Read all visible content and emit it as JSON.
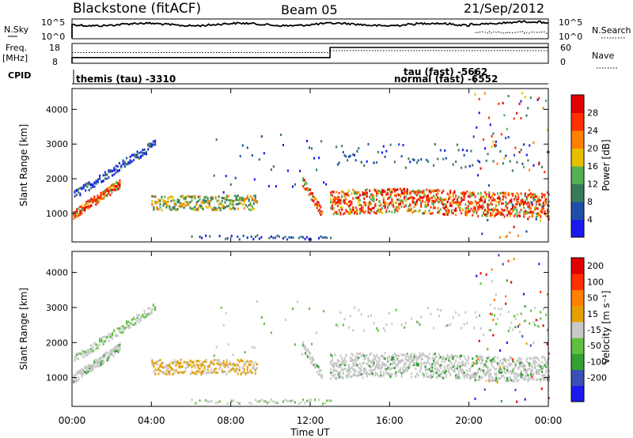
{
  "header": {
    "station": "Blackstone (fitACF)",
    "beam": "Beam 05",
    "date": "21/Sep/2012"
  },
  "top_panels": {
    "nsky_label": "N.Sky",
    "nsky_ticks": [
      "10^5",
      "10^0"
    ],
    "nsearch_label": "N.Search",
    "nsearch_ticks": [
      "10^5",
      "10^0"
    ],
    "freq_label_1": "Freq.",
    "freq_label_2": "[MHz]",
    "freq_ticks": [
      "18",
      "8"
    ],
    "nave_label": "Nave",
    "nave_ticks": [
      "60",
      "0"
    ],
    "cpid_label": "CPID",
    "cpid_entries": [
      {
        "text": "themis (tau)  -3310"
      },
      {
        "text": "tau (fast)  -5662"
      },
      {
        "text": "normal (fast)  -6552"
      }
    ],
    "freq_step": {
      "before_mhz": 10,
      "after_mhz": 18,
      "change_time_h": 13.0
    },
    "nave_step": {
      "before": 55,
      "after": 60,
      "change_time_h": 13.0
    }
  },
  "x_axis": {
    "label": "Time UT",
    "ticks": [
      "00:00",
      "04:00",
      "08:00",
      "12:00",
      "16:00",
      "20:00",
      "00:00"
    ]
  },
  "colors": {
    "power_scale": [
      "#1a1aee",
      "#1e4fa8",
      "#3a7a5a",
      "#55b055",
      "#e6c000",
      "#ff8000",
      "#ff3000",
      "#e00000"
    ],
    "velocity_scale": [
      "#1a1aee",
      "#3a4fb8",
      "#33a033",
      "#60c040",
      "#c8c8c8",
      "#e6a000",
      "#ff8000",
      "#ff3000",
      "#e00000"
    ]
  },
  "chart_data": [
    {
      "type": "heatmap",
      "title": "",
      "xlabel": "Time UT",
      "ylabel": "Slant Range [km]",
      "xlim": [
        0,
        24
      ],
      "ylim": [
        180,
        4600
      ],
      "yticks": [
        1000,
        2000,
        3000,
        4000
      ],
      "colorbar": {
        "label": "Power [dB]",
        "ticks": [
          "4",
          "8",
          "12",
          "16",
          "20",
          "24",
          "28"
        ]
      },
      "features": [
        {
          "name": "near range arc",
          "t_start": 0.0,
          "t_end": 2.3,
          "range_start": 900,
          "range_end": 1800
        },
        {
          "name": "midday patch",
          "t_start": 4.0,
          "t_end": 9.3,
          "range": 1300
        },
        {
          "name": "evening band",
          "t_start": 13.0,
          "t_end": 24.0,
          "range": 1300
        }
      ]
    },
    {
      "type": "heatmap",
      "title": "",
      "xlabel": "Time UT",
      "ylabel": "Slant Range [km]",
      "xlim": [
        0,
        24
      ],
      "ylim": [
        180,
        4600
      ],
      "yticks": [
        1000,
        2000,
        3000,
        4000
      ],
      "colorbar": {
        "label": "Velocity [m s⁻¹]",
        "ticks": [
          "200",
          "100",
          "50",
          "15",
          "-15",
          "-50",
          "-100",
          "-200"
        ]
      }
    }
  ]
}
